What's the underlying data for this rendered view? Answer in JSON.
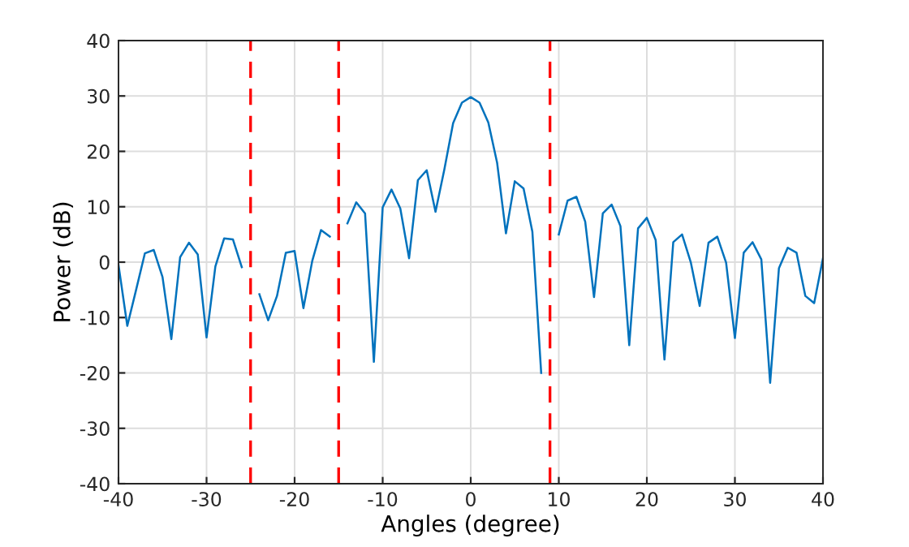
{
  "chart_data": {
    "type": "line",
    "xlabel": "Angles (degree)",
    "ylabel": "Power (dB)",
    "x": [
      -40,
      -39,
      -38,
      -37,
      -36,
      -35,
      -34,
      -33,
      -32,
      -31,
      -30,
      -29,
      -28,
      -27,
      -26,
      -25,
      -24,
      -23,
      -22,
      -21,
      -20,
      -19,
      -18,
      -17,
      -16,
      -15,
      -14,
      -13,
      -12,
      -11,
      -10,
      -9,
      -8,
      -7,
      -6,
      -5,
      -4,
      -3,
      -2,
      -1,
      0,
      1,
      2,
      3,
      4,
      5,
      6,
      7,
      8,
      9,
      10,
      11,
      12,
      13,
      14,
      15,
      16,
      17,
      18,
      19,
      20,
      21,
      22,
      23,
      24,
      25,
      26,
      27,
      28,
      29,
      30,
      31,
      32,
      33,
      34,
      35,
      36,
      37,
      38,
      39,
      40
    ],
    "series": [
      {
        "color": "#0072bd",
        "values": [
          -0.5,
          -11.5,
          -5,
          1.6,
          2.2,
          -2.7,
          -13.9,
          0.9,
          3.5,
          1.4,
          -13.6,
          -0.8,
          4.3,
          4.1,
          -0.9,
          null,
          -5.8,
          -10.5,
          -6.1,
          1.7,
          2,
          -8.3,
          0.2,
          5.8,
          4.6,
          null,
          7,
          10.8,
          8.8,
          -18,
          9.9,
          13.1,
          9.7,
          0.7,
          14.8,
          16.6,
          9.1,
          16.7,
          25.1,
          28.8,
          29.8,
          28.8,
          25.2,
          17.9,
          5.2,
          14.6,
          13.3,
          5.5,
          -20,
          null,
          5,
          11.1,
          11.8,
          7.3,
          -6.3,
          8.8,
          10.4,
          6.5,
          -15,
          6.1,
          8,
          4,
          -17.6,
          3.6,
          5,
          -0.1,
          -7.9,
          3.5,
          4.6,
          -0.1,
          -13.7,
          1.7,
          3.6,
          0.5,
          -21.8,
          -1.1,
          2.6,
          1.7,
          -6.1,
          -7.4,
          0.7
        ]
      }
    ],
    "xlim": [
      -40,
      40
    ],
    "xticks": [
      -40,
      -30,
      -20,
      -10,
      0,
      10,
      20,
      30,
      40
    ],
    "ylim": [
      -40,
      40
    ],
    "yticks": [
      -40,
      -30,
      -20,
      -10,
      0,
      10,
      20,
      30,
      40
    ],
    "grid": true,
    "line_style": "solid",
    "ref_lines": [
      {
        "axis": "x",
        "value": -25,
        "color": "#ff0000",
        "line_style": "dashed"
      },
      {
        "axis": "x",
        "value": -15,
        "color": "#ff0000",
        "line_style": "dashed"
      },
      {
        "axis": "x",
        "value": 9,
        "color": "#ff0000",
        "line_style": "dashed"
      }
    ]
  }
}
